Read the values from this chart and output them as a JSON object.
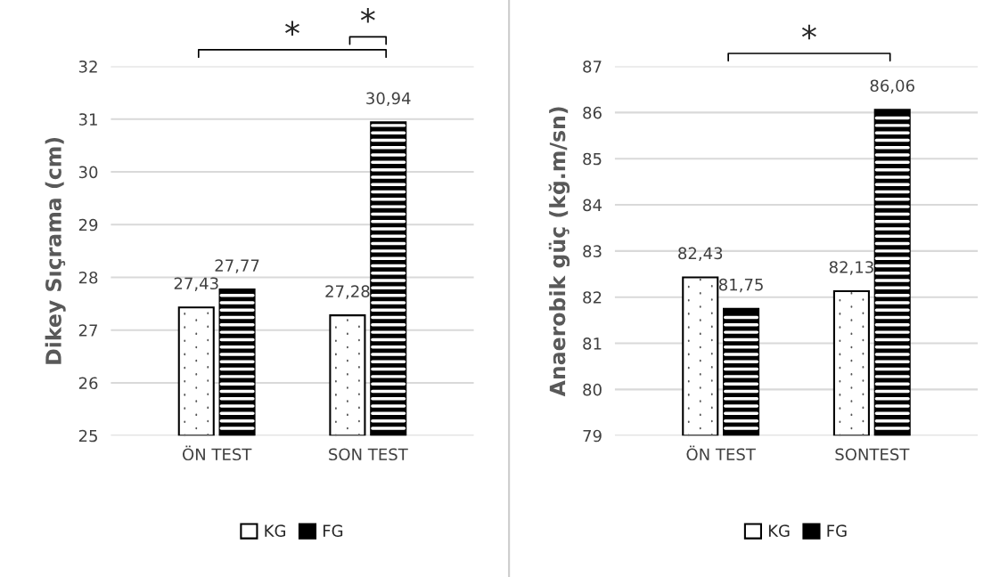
{
  "chart_data": [
    {
      "type": "bar",
      "ylabel": "Dikey Sıçrama (cm)",
      "categories": [
        "ÖN TEST",
        "SON TEST"
      ],
      "series": [
        {
          "name": "KG",
          "color": "#ffffff",
          "values": [
            27.43,
            27.28
          ],
          "value_labels": [
            "27,43",
            "27,28"
          ]
        },
        {
          "name": "FG",
          "color": "#000000",
          "values": [
            27.77,
            30.94
          ],
          "value_labels": [
            "27,77",
            "30,94"
          ]
        }
      ],
      "ylim": [
        25,
        32
      ],
      "yticks": [
        25,
        26,
        27,
        28,
        29,
        30,
        31,
        32
      ],
      "grid": "y",
      "legend": "bottom",
      "annotations": [
        "*",
        "*"
      ]
    },
    {
      "type": "bar",
      "ylabel": "Anaerobik güç (kğ.m/sn)",
      "categories": [
        "ÖN TEST",
        "SONTEST"
      ],
      "series": [
        {
          "name": "KG",
          "color": "#ffffff",
          "values": [
            82.43,
            82.13
          ],
          "value_labels": [
            "82,43",
            "82,13"
          ]
        },
        {
          "name": "FG",
          "color": "#000000",
          "values": [
            81.75,
            86.06
          ],
          "value_labels": [
            "81,75",
            "86,06"
          ]
        }
      ],
      "ylim": [
        79,
        87
      ],
      "yticks": [
        79,
        80,
        81,
        82,
        83,
        84,
        85,
        86,
        87
      ],
      "grid": "y",
      "legend": "bottom",
      "annotations": [
        "*"
      ]
    }
  ]
}
